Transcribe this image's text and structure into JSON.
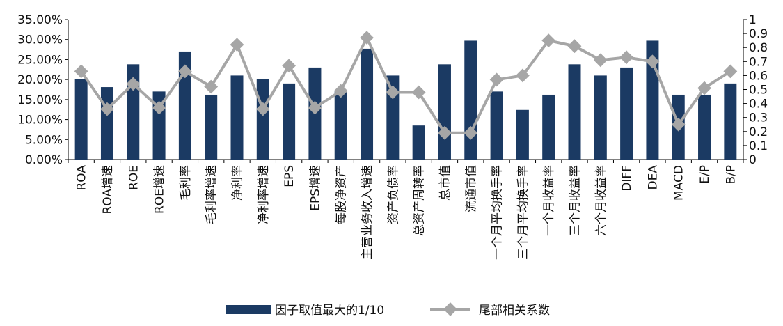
{
  "chart_data": {
    "type": "bar+line",
    "categories": [
      "ROA",
      "ROA增速",
      "ROE",
      "ROE增速",
      "毛利率",
      "毛利率增速",
      "净利率",
      "净利率增速",
      "EPS",
      "EPS增速",
      "每股净资产",
      "主营业务收入增速",
      "资产负债率",
      "总资产周转率",
      "总市值",
      "流通市值",
      "一个月平均换手率",
      "三个月平均换手率",
      "一个月收益率",
      "三个月收益率",
      "六个月收益率",
      "DIFF",
      "DEA",
      "MACD",
      "E/P",
      "B/P"
    ],
    "series": [
      {
        "name": "因子取值最大的1/10",
        "type": "bar",
        "axis": "left",
        "color": "#1b3a63",
        "values": [
          20.2,
          18.1,
          23.8,
          17.0,
          27.0,
          16.2,
          21.0,
          20.2,
          19.0,
          23.0,
          17.0,
          27.7,
          21.0,
          8.5,
          23.8,
          29.7,
          17.0,
          12.4,
          16.2,
          23.8,
          21.0,
          23.0,
          29.7,
          16.2,
          16.2,
          19.0
        ]
      },
      {
        "name": "尾部相关系数",
        "type": "line",
        "axis": "right",
        "color": "#a6a6a6",
        "values": [
          0.63,
          0.36,
          0.54,
          0.37,
          0.63,
          0.52,
          0.82,
          0.36,
          0.67,
          0.37,
          0.49,
          0.87,
          0.48,
          0.48,
          0.19,
          0.19,
          0.57,
          0.6,
          0.85,
          0.81,
          0.71,
          0.73,
          0.7,
          0.25,
          0.51,
          0.63
        ]
      }
    ],
    "y_left": {
      "min": 0,
      "max": 35,
      "step": 5,
      "ticks": [
        "0.00%",
        "5.00%",
        "10.00%",
        "15.00%",
        "20.00%",
        "25.00%",
        "30.00%",
        "35.00%"
      ]
    },
    "y_right": {
      "min": 0,
      "max": 1,
      "step": 0.1,
      "ticks": [
        "0",
        "0.1",
        "0.2",
        "0.3",
        "0.4",
        "0.5",
        "0.6",
        "0.7",
        "0.8",
        "0.9",
        "1"
      ]
    },
    "grid": false,
    "legend_position": "bottom-center"
  }
}
